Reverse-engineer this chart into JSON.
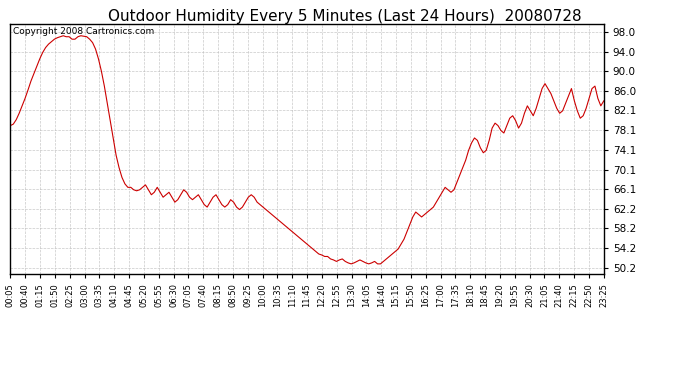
{
  "title": "Outdoor Humidity Every 5 Minutes (Last 24 Hours)  20080728",
  "copyright": "Copyright 2008 Cartronics.com",
  "line_color": "#cc0000",
  "bg_color": "#ffffff",
  "grid_color": "#bbbbbb",
  "ylim": [
    49.0,
    99.5
  ],
  "yticks": [
    50.2,
    54.2,
    58.2,
    62.2,
    66.1,
    70.1,
    74.1,
    78.1,
    82.1,
    86.0,
    90.0,
    94.0,
    98.0
  ],
  "ytick_labels": [
    "50.2",
    "54.2",
    "58.2",
    "62.2",
    "66.1",
    "70.1",
    "74.1",
    "78.1",
    "82.1",
    "86.0",
    "90.0",
    "94.0",
    "98.0"
  ],
  "xlabel_fontsize": 6.0,
  "title_fontsize": 11,
  "copyright_fontsize": 6.5,
  "xtick_labels": [
    "00:05",
    "00:40",
    "01:15",
    "01:50",
    "02:25",
    "03:00",
    "03:35",
    "04:10",
    "04:45",
    "05:20",
    "05:55",
    "06:30",
    "07:05",
    "07:40",
    "08:15",
    "08:50",
    "09:25",
    "10:00",
    "10:35",
    "11:10",
    "11:45",
    "12:20",
    "12:55",
    "13:30",
    "14:05",
    "14:40",
    "15:15",
    "15:50",
    "16:25",
    "17:00",
    "17:35",
    "18:10",
    "18:45",
    "19:20",
    "19:55",
    "20:30",
    "21:05",
    "21:40",
    "22:15",
    "22:50",
    "23:25"
  ],
  "humidity": [
    79.0,
    79.3,
    80.2,
    81.5,
    83.0,
    84.5,
    86.2,
    88.0,
    89.5,
    91.0,
    92.5,
    93.8,
    94.8,
    95.5,
    96.0,
    96.5,
    96.8,
    97.0,
    97.2,
    97.0,
    97.0,
    96.5,
    96.5,
    97.0,
    97.2,
    97.1,
    97.0,
    96.5,
    95.8,
    94.5,
    92.5,
    90.0,
    87.0,
    83.5,
    80.0,
    76.5,
    73.0,
    70.5,
    68.5,
    67.2,
    66.5,
    66.5,
    66.0,
    65.8,
    66.0,
    66.5,
    67.0,
    66.0,
    65.0,
    65.5,
    66.5,
    65.5,
    64.5,
    65.0,
    65.5,
    64.5,
    63.5,
    64.0,
    65.0,
    66.0,
    65.5,
    64.5,
    64.0,
    64.5,
    65.0,
    64.0,
    63.0,
    62.5,
    63.5,
    64.5,
    65.0,
    64.0,
    63.0,
    62.5,
    63.0,
    64.0,
    63.5,
    62.5,
    62.0,
    62.5,
    63.5,
    64.5,
    65.0,
    64.5,
    63.5,
    63.0,
    62.5,
    62.0,
    61.5,
    61.0,
    60.5,
    60.0,
    59.5,
    59.0,
    58.5,
    58.0,
    57.5,
    57.0,
    56.5,
    56.0,
    55.5,
    55.0,
    54.5,
    54.0,
    53.5,
    53.0,
    52.8,
    52.5,
    52.5,
    52.0,
    51.8,
    51.5,
    51.8,
    52.0,
    51.5,
    51.2,
    51.0,
    51.2,
    51.5,
    51.8,
    51.5,
    51.2,
    51.0,
    51.2,
    51.5,
    51.0,
    51.0,
    51.5,
    52.0,
    52.5,
    53.0,
    53.5,
    54.0,
    55.0,
    56.0,
    57.5,
    59.0,
    60.5,
    61.5,
    61.0,
    60.5,
    61.0,
    61.5,
    62.0,
    62.5,
    63.5,
    64.5,
    65.5,
    66.5,
    66.0,
    65.5,
    66.0,
    67.5,
    69.0,
    70.5,
    72.0,
    74.0,
    75.5,
    76.5,
    76.0,
    74.5,
    73.5,
    74.0,
    76.0,
    78.5,
    79.5,
    79.0,
    78.0,
    77.5,
    79.0,
    80.5,
    81.0,
    80.0,
    78.5,
    79.5,
    81.5,
    83.0,
    82.0,
    81.0,
    82.5,
    84.5,
    86.5,
    87.5,
    86.5,
    85.5,
    84.0,
    82.5,
    81.5,
    82.0,
    83.5,
    85.0,
    86.5,
    84.0,
    82.0,
    80.5,
    81.0,
    82.5,
    84.5,
    86.5,
    87.0,
    84.5,
    83.0,
    84.0
  ]
}
